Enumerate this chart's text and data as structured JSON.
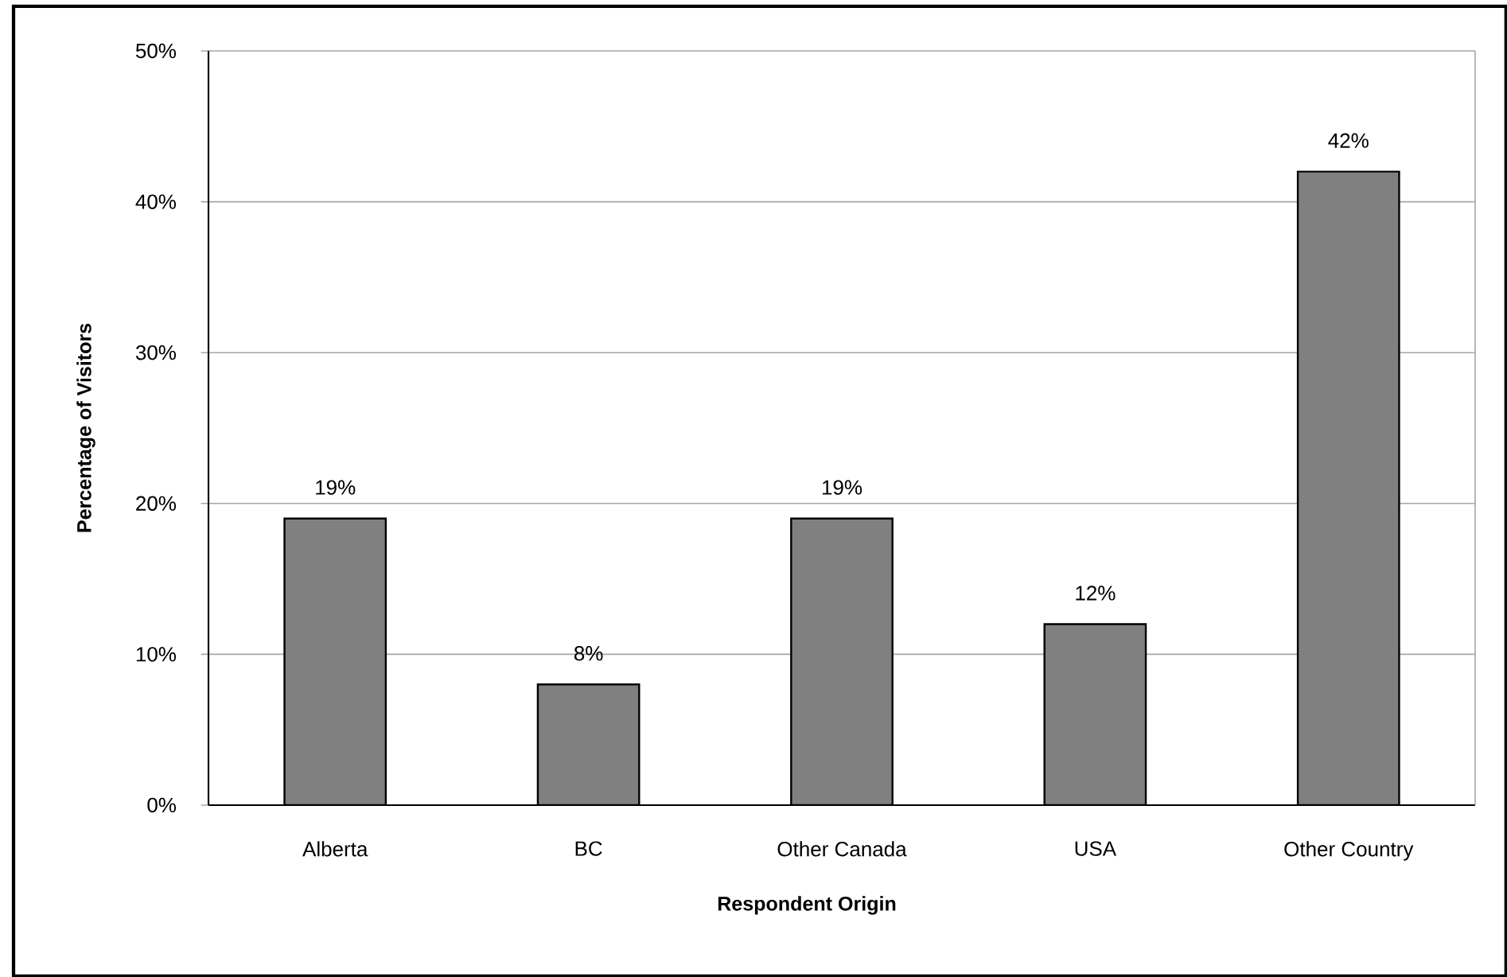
{
  "chart_data": {
    "type": "bar",
    "categories": [
      "Alberta",
      "BC",
      "Other Canada",
      "USA",
      "Other Country"
    ],
    "values": [
      19,
      8,
      19,
      12,
      42
    ],
    "value_labels": [
      "19%",
      "8%",
      "19%",
      "12%",
      "42%"
    ],
    "color": "#808080",
    "xlabel": "Respondent Origin",
    "ylabel": "Percentage of Visitors",
    "ylim": [
      0,
      50
    ],
    "yticks": [
      {
        "value": 0,
        "label": "0%"
      },
      {
        "value": 10,
        "label": "10%"
      },
      {
        "value": 20,
        "label": "20%"
      },
      {
        "value": 30,
        "label": "30%"
      },
      {
        "value": 40,
        "label": "40%"
      },
      {
        "value": 50,
        "label": "50%"
      }
    ],
    "grid": "y"
  }
}
